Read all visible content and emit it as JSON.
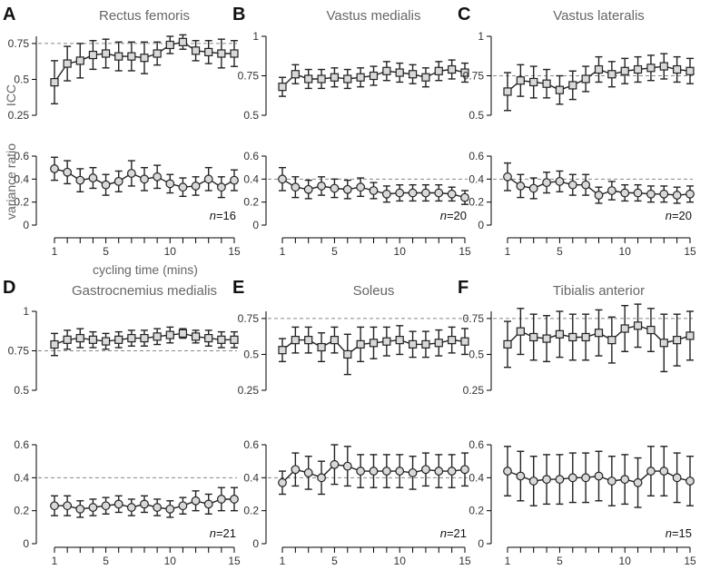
{
  "figure": {
    "ylabel_top": "ICC",
    "ylabel_bottom": "variance ratio",
    "xlabel": "cycling time (mins)"
  },
  "colors": {
    "icc_marker_fill": "#d9d9d9",
    "vr_marker_fill": "#d9d9d9",
    "line": "#222222",
    "reference": "#888888"
  },
  "chart_data": [
    {
      "type": "line",
      "letter": "A",
      "title": "Rectus femoris",
      "n_text": "=16",
      "x": [
        1,
        2,
        3,
        4,
        5,
        6,
        7,
        8,
        9,
        10,
        11,
        12,
        13,
        14,
        15
      ],
      "icc": {
        "ylim": [
          0.25,
          0.8
        ],
        "yticks": [
          0.25,
          0.5,
          0.75
        ],
        "reference": 0.75,
        "mean": [
          0.48,
          0.61,
          0.63,
          0.67,
          0.68,
          0.66,
          0.66,
          0.65,
          0.68,
          0.74,
          0.76,
          0.7,
          0.69,
          0.68,
          0.68
        ],
        "error": [
          0.15,
          0.12,
          0.12,
          0.1,
          0.1,
          0.1,
          0.1,
          0.11,
          0.08,
          0.06,
          0.05,
          0.07,
          0.08,
          0.1,
          0.09
        ]
      },
      "vr": {
        "ylim": [
          0,
          0.6
        ],
        "yticks": [
          0,
          0.2,
          0.4,
          0.6
        ],
        "reference": null,
        "mean": [
          0.49,
          0.46,
          0.39,
          0.41,
          0.35,
          0.38,
          0.45,
          0.4,
          0.42,
          0.36,
          0.33,
          0.34,
          0.4,
          0.33,
          0.39
        ],
        "error": [
          0.1,
          0.1,
          0.1,
          0.09,
          0.09,
          0.09,
          0.11,
          0.1,
          0.1,
          0.08,
          0.08,
          0.08,
          0.1,
          0.09,
          0.09
        ]
      }
    },
    {
      "type": "line",
      "letter": "B",
      "title": "Vastus medialis",
      "n_text": "=20",
      "x": [
        1,
        2,
        3,
        4,
        5,
        6,
        7,
        8,
        9,
        10,
        11,
        12,
        13,
        14,
        15
      ],
      "icc": {
        "ylim": [
          0.5,
          1.0
        ],
        "yticks": [
          0.5,
          0.75,
          1
        ],
        "reference": null,
        "mean": [
          0.68,
          0.76,
          0.73,
          0.73,
          0.74,
          0.73,
          0.74,
          0.75,
          0.78,
          0.77,
          0.76,
          0.74,
          0.78,
          0.79,
          0.77
        ],
        "error": [
          0.06,
          0.06,
          0.06,
          0.06,
          0.06,
          0.06,
          0.06,
          0.06,
          0.06,
          0.06,
          0.06,
          0.06,
          0.06,
          0.06,
          0.06
        ]
      },
      "vr": {
        "ylim": [
          0,
          0.6
        ],
        "yticks": [
          0,
          0.2,
          0.4,
          0.6
        ],
        "reference": 0.4,
        "mean": [
          0.4,
          0.33,
          0.31,
          0.34,
          0.32,
          0.31,
          0.33,
          0.3,
          0.27,
          0.28,
          0.28,
          0.28,
          0.28,
          0.27,
          0.24
        ],
        "error": [
          0.1,
          0.09,
          0.08,
          0.08,
          0.08,
          0.08,
          0.08,
          0.07,
          0.07,
          0.07,
          0.07,
          0.07,
          0.07,
          0.06,
          0.06
        ]
      }
    },
    {
      "type": "line",
      "letter": "C",
      "title": "Vastus lateralis",
      "n_text": "=20",
      "x": [
        1,
        2,
        3,
        4,
        5,
        6,
        7,
        8,
        9,
        10,
        11,
        12,
        13,
        14,
        15
      ],
      "icc": {
        "ylim": [
          0.5,
          1.0
        ],
        "yticks": [
          0.5,
          0.75,
          1
        ],
        "reference": 0.75,
        "mean": [
          0.65,
          0.72,
          0.71,
          0.7,
          0.66,
          0.69,
          0.73,
          0.79,
          0.76,
          0.78,
          0.79,
          0.8,
          0.81,
          0.79,
          0.78
        ],
        "error": [
          0.12,
          0.1,
          0.1,
          0.09,
          0.09,
          0.09,
          0.08,
          0.08,
          0.08,
          0.08,
          0.08,
          0.08,
          0.08,
          0.08,
          0.08
        ]
      },
      "vr": {
        "ylim": [
          0,
          0.6
        ],
        "yticks": [
          0,
          0.2,
          0.4,
          0.6
        ],
        "reference": 0.4,
        "mean": [
          0.42,
          0.34,
          0.32,
          0.37,
          0.38,
          0.35,
          0.35,
          0.26,
          0.3,
          0.28,
          0.28,
          0.27,
          0.27,
          0.26,
          0.27
        ],
        "error": [
          0.12,
          0.1,
          0.09,
          0.09,
          0.09,
          0.09,
          0.09,
          0.07,
          0.08,
          0.07,
          0.07,
          0.07,
          0.07,
          0.07,
          0.07
        ]
      }
    },
    {
      "type": "line",
      "letter": "D",
      "title": "Gastrocnemius medialis",
      "n_text": "=21",
      "x": [
        1,
        2,
        3,
        4,
        5,
        6,
        7,
        8,
        9,
        10,
        11,
        12,
        13,
        14,
        15
      ],
      "icc": {
        "ylim": [
          0.5,
          1.0
        ],
        "yticks": [
          0.5,
          0.75,
          1
        ],
        "reference": 0.75,
        "mean": [
          0.79,
          0.82,
          0.83,
          0.82,
          0.81,
          0.82,
          0.83,
          0.83,
          0.84,
          0.85,
          0.86,
          0.84,
          0.83,
          0.82,
          0.82
        ],
        "error": [
          0.07,
          0.06,
          0.06,
          0.05,
          0.05,
          0.05,
          0.05,
          0.05,
          0.05,
          0.05,
          0.03,
          0.04,
          0.05,
          0.05,
          0.05
        ]
      },
      "vr": {
        "ylim": [
          0,
          0.6
        ],
        "yticks": [
          0,
          0.2,
          0.4,
          0.6
        ],
        "reference": 0.4,
        "mean": [
          0.23,
          0.23,
          0.21,
          0.22,
          0.23,
          0.24,
          0.22,
          0.24,
          0.22,
          0.21,
          0.23,
          0.26,
          0.24,
          0.27,
          0.27
        ],
        "error": [
          0.06,
          0.06,
          0.05,
          0.05,
          0.05,
          0.05,
          0.05,
          0.05,
          0.05,
          0.05,
          0.05,
          0.06,
          0.06,
          0.07,
          0.07
        ]
      }
    },
    {
      "type": "line",
      "letter": "E",
      "title": "Soleus",
      "n_text": "=21",
      "x": [
        1,
        2,
        3,
        4,
        5,
        6,
        7,
        8,
        9,
        10,
        11,
        12,
        13,
        14,
        15
      ],
      "icc": {
        "ylim": [
          0.25,
          0.8
        ],
        "yticks": [
          0.25,
          0.5,
          0.75
        ],
        "reference": 0.75,
        "mean": [
          0.53,
          0.6,
          0.6,
          0.55,
          0.6,
          0.5,
          0.57,
          0.58,
          0.59,
          0.6,
          0.57,
          0.57,
          0.58,
          0.6,
          0.59
        ],
        "error": [
          0.08,
          0.09,
          0.09,
          0.1,
          0.09,
          0.14,
          0.12,
          0.11,
          0.1,
          0.1,
          0.09,
          0.09,
          0.09,
          0.09,
          0.09
        ]
      },
      "vr": {
        "ylim": [
          0,
          0.6
        ],
        "yticks": [
          0,
          0.2,
          0.4,
          0.6
        ],
        "reference": 0.4,
        "mean": [
          0.37,
          0.45,
          0.43,
          0.4,
          0.48,
          0.47,
          0.44,
          0.44,
          0.44,
          0.44,
          0.43,
          0.45,
          0.44,
          0.44,
          0.45
        ],
        "error": [
          0.07,
          0.1,
          0.1,
          0.1,
          0.12,
          0.12,
          0.1,
          0.1,
          0.1,
          0.1,
          0.1,
          0.1,
          0.1,
          0.1,
          0.1
        ]
      }
    },
    {
      "type": "line",
      "letter": "F",
      "title": "Tibialis anterior",
      "n_text": "=15",
      "x": [
        1,
        2,
        3,
        4,
        5,
        6,
        7,
        8,
        9,
        10,
        11,
        12,
        13,
        14,
        15
      ],
      "icc": {
        "ylim": [
          0.25,
          0.8
        ],
        "yticks": [
          0.25,
          0.5,
          0.75
        ],
        "reference": 0.75,
        "mean": [
          0.57,
          0.66,
          0.62,
          0.61,
          0.64,
          0.62,
          0.62,
          0.65,
          0.6,
          0.68,
          0.7,
          0.67,
          0.58,
          0.6,
          0.63
        ],
        "error": [
          0.16,
          0.16,
          0.16,
          0.16,
          0.16,
          0.16,
          0.16,
          0.16,
          0.16,
          0.16,
          0.15,
          0.15,
          0.2,
          0.18,
          0.17
        ]
      },
      "vr": {
        "ylim": [
          0,
          0.6
        ],
        "yticks": [
          0,
          0.2,
          0.4,
          0.6
        ],
        "reference": null,
        "mean": [
          0.44,
          0.41,
          0.38,
          0.39,
          0.39,
          0.4,
          0.4,
          0.41,
          0.38,
          0.39,
          0.37,
          0.44,
          0.44,
          0.4,
          0.38
        ],
        "error": [
          0.15,
          0.15,
          0.15,
          0.15,
          0.15,
          0.15,
          0.15,
          0.15,
          0.15,
          0.15,
          0.15,
          0.15,
          0.15,
          0.15,
          0.15
        ]
      }
    }
  ]
}
